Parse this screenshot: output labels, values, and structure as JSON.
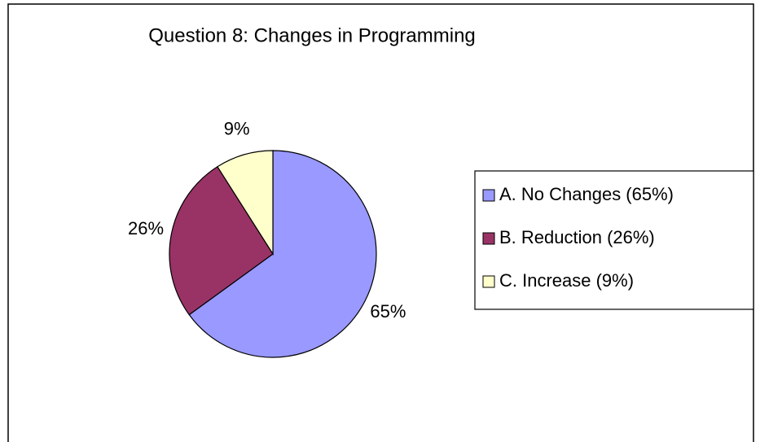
{
  "chart_data": {
    "type": "pie",
    "title": "Question 8: Changes in Programming",
    "categories": [
      "A. No Changes (65%)",
      "B. Reduction (26%)",
      "C. Increase (9%)"
    ],
    "values": [
      65,
      26,
      9
    ],
    "value_labels": [
      "65%",
      "26%",
      "9%"
    ],
    "colors": [
      "#9999ff",
      "#993366",
      "#ffffcc"
    ],
    "legend": "right"
  }
}
